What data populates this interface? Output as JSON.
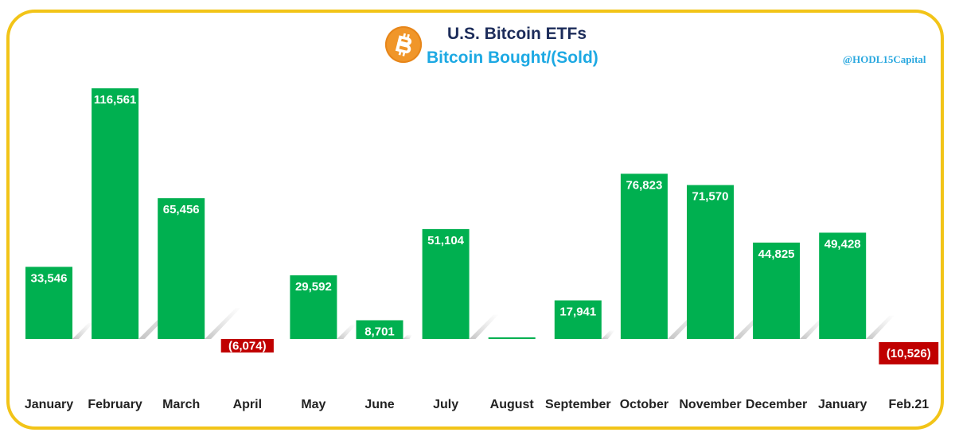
{
  "header": {
    "title": "U.S. Bitcoin ETFs",
    "subtitle": "Bitcoin Bought/(Sold)",
    "handle": "@HODL15Capital",
    "logo_icon": "bitcoin-logo-icon"
  },
  "colors": {
    "positive": "#00b050",
    "negative": "#c00000",
    "frame": "#f2c418",
    "logo": "#f0962a",
    "title": "#1c2c5a",
    "subtitle": "#1da9e3"
  },
  "chart_data": {
    "type": "bar",
    "title": "U.S. Bitcoin ETFs",
    "subtitle": "Bitcoin Bought/(Sold)",
    "xlabel": "",
    "ylabel": "",
    "grid": false,
    "legend": "none",
    "categories": [
      "January",
      "February",
      "March",
      "April",
      "May",
      "June",
      "July",
      "August",
      "September",
      "October",
      "November",
      "December",
      "January",
      "Feb.21"
    ],
    "values": [
      33546,
      116561,
      65456,
      -6074,
      29592,
      8701,
      51104,
      700,
      17941,
      76823,
      71570,
      44825,
      49428,
      -10526
    ],
    "data_labels": [
      "33,546",
      "116,561",
      "65,456",
      "(6,074)",
      "29,592",
      "8,701",
      "51,104",
      "",
      "17,941",
      "76,823",
      "71,570",
      "44,825",
      "49,428",
      "(10,526)"
    ],
    "ylim": [
      -12000,
      118000
    ]
  }
}
